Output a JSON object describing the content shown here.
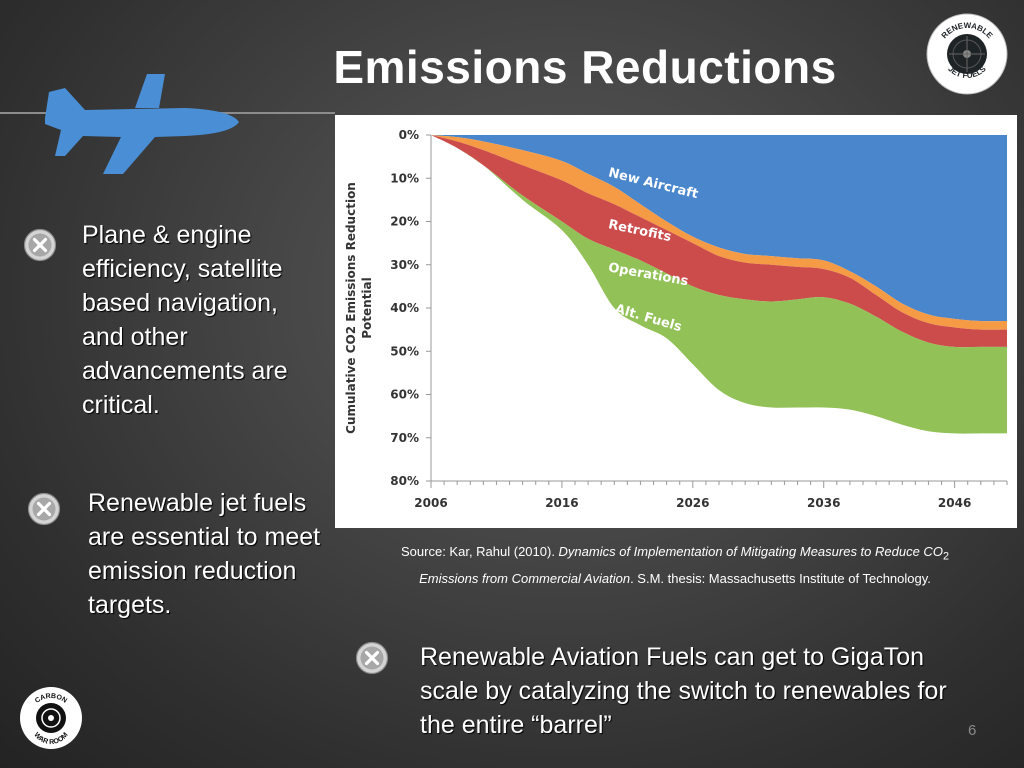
{
  "slide": {
    "title": "Emissions Reductions",
    "page_number": "6"
  },
  "bullets": [
    {
      "text": "Plane & engine efficiency, satellite based navigation, and other advancements are critical."
    },
    {
      "text": "Renewable jet fuels are essential to meet emission reduction targets."
    },
    {
      "text": "Renewable Aviation Fuels can get to GigaTon scale by catalyzing the switch to renewables for the entire “barrel”"
    }
  ],
  "logos": {
    "top_right": {
      "line1": "RENEWABLE",
      "line2": "JET FUELS"
    },
    "bottom_left": {
      "line1": "CARBON",
      "line2": "WAR ROOM"
    }
  },
  "source": {
    "prefix": "Source: Kar, Rahul (2010). ",
    "title_part1": "Dynamics of Implementation of Mitigating Measures to Reduce CO",
    "subscript": "2",
    "title_part2": "Emissions from Commercial Aviation",
    "suffix": ". S.M. thesis: Massachusetts Institute of Technology."
  },
  "chart_data": {
    "type": "area",
    "ylabel": "Cumulative CO2 Emissions Reduction Potential",
    "x_ticks": [
      "2006",
      "2016",
      "2026",
      "2036",
      "2046"
    ],
    "y_ticks": [
      "0%",
      "10%",
      "20%",
      "30%",
      "40%",
      "50%",
      "60%",
      "70%",
      "80%"
    ],
    "xlim": [
      2006,
      2050
    ],
    "ylim": [
      0,
      80
    ],
    "grid": false,
    "x": [
      2006,
      2008,
      2010,
      2013,
      2016,
      2018,
      2020,
      2022,
      2024,
      2026,
      2028,
      2030,
      2032,
      2034,
      2036,
      2038,
      2040,
      2042,
      2044,
      2046,
      2048,
      2050
    ],
    "series": [
      {
        "name": "New Aircraft",
        "color": "#4a86cc",
        "values": [
          0,
          0.5,
          1.5,
          3.5,
          6,
          9,
          12,
          16,
          20,
          23.5,
          26,
          27.5,
          28,
          28.5,
          29,
          31.5,
          35,
          39,
          41.5,
          42.5,
          43,
          43
        ]
      },
      {
        "name": "Retrofits",
        "color": "#f59a45",
        "values": [
          0,
          1.5,
          3.5,
          7,
          10.5,
          13.5,
          16,
          19,
          22,
          25,
          28,
          29.5,
          30,
          30.5,
          31,
          33,
          37,
          41,
          43.5,
          44.5,
          45,
          45
        ]
      },
      {
        "name": "Operations",
        "color": "#cc4b4b",
        "values": [
          0,
          3,
          7,
          14,
          20,
          24,
          26.5,
          29,
          32,
          35,
          37,
          38,
          38.5,
          38,
          37.5,
          39,
          42,
          45.5,
          48,
          49,
          49,
          49
        ]
      },
      {
        "name": "Alt. Fuels",
        "color": "#92c157",
        "values": [
          0,
          3,
          7,
          15,
          22,
          30,
          40,
          44,
          47,
          53,
          59,
          62,
          63,
          63,
          63,
          63.5,
          65,
          67,
          68.5,
          69,
          69,
          69
        ]
      }
    ]
  }
}
